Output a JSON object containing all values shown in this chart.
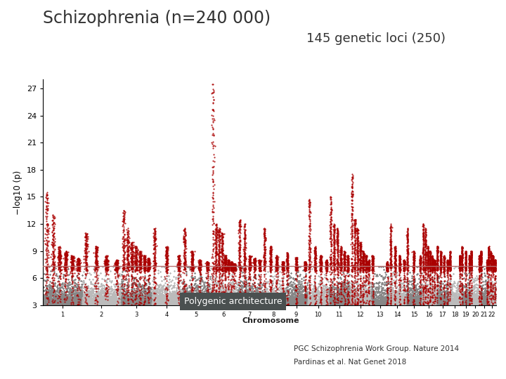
{
  "title_main": "Schizophrenia (n=240 000)",
  "title_sub": "145 genetic loci (250)",
  "ylabel": "−log10 (p)",
  "xlabel": "Chromosome",
  "ylim": [
    3,
    28
  ],
  "yticks": [
    3,
    6,
    9,
    12,
    15,
    18,
    21,
    24,
    27
  ],
  "significance_line": 7.3,
  "significance_color": "#b87070",
  "annotation_text": "Polygenic architecture",
  "annotation_bg": "#4a5050",
  "annotation_text_color": "#ffffff",
  "bg_color": "#ffffff",
  "plot_bg": "#ffffff",
  "chr_color_odd": "#888888",
  "chr_color_even": "#bbbbbb",
  "sig_color": "#aa0000",
  "ref_line1": "PGC Schizophrenia Work Group. Nature 2014",
  "ref_line2": "Pardinas et al. Nat Genet 2018",
  "chr_labels": [
    "1",
    "2",
    "3",
    "4",
    "5",
    "6",
    "7",
    "8",
    "9",
    "10",
    "11",
    "12",
    "13",
    "14",
    "15",
    "16",
    "17",
    "18",
    "19",
    "20",
    "21",
    "22"
  ],
  "chr_sizes": [
    249,
    243,
    198,
    191,
    181,
    171,
    159,
    146,
    141,
    135,
    135,
    133,
    115,
    107,
    102,
    90,
    81,
    78,
    59,
    63,
    48,
    51
  ]
}
